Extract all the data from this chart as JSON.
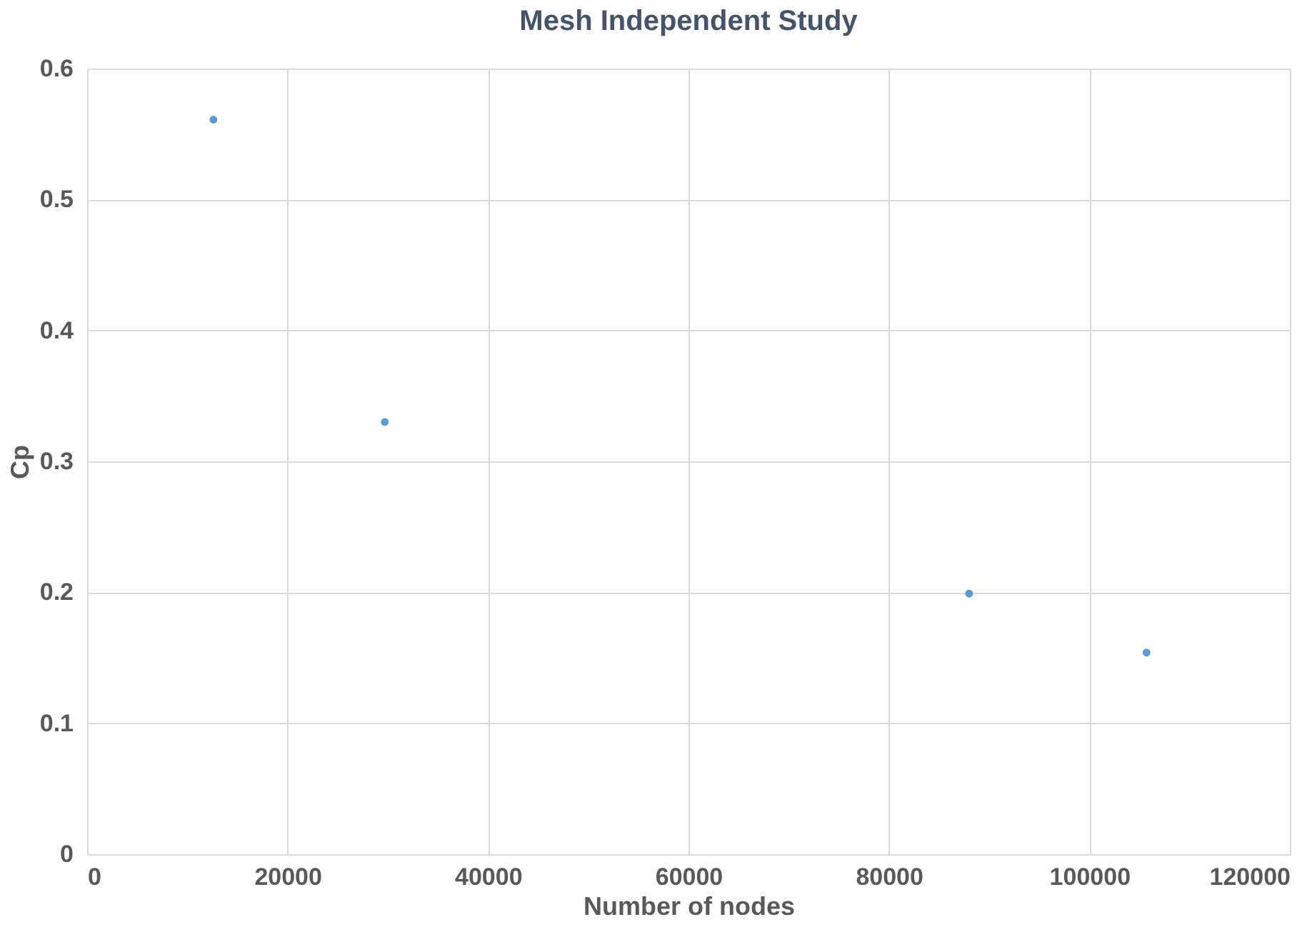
{
  "chart_data": {
    "type": "scatter",
    "title": "Mesh Independent Study",
    "xlabel": "Number of nodes",
    "ylabel": "Cp",
    "x": [
      12600,
      29700,
      88000,
      105700
    ],
    "series": [
      {
        "color": "#5b9bd5",
        "values": [
          0.561,
          0.33,
          0.199,
          0.154
        ]
      }
    ],
    "xlim": [
      0,
      120000
    ],
    "xticks": [
      0,
      20000,
      40000,
      60000,
      80000,
      100000,
      120000
    ],
    "ylim": [
      0,
      0.6
    ],
    "yticks": [
      0,
      0.1,
      0.2,
      0.3,
      0.4,
      0.5,
      0.6
    ],
    "grid": true,
    "marker": "circle"
  }
}
